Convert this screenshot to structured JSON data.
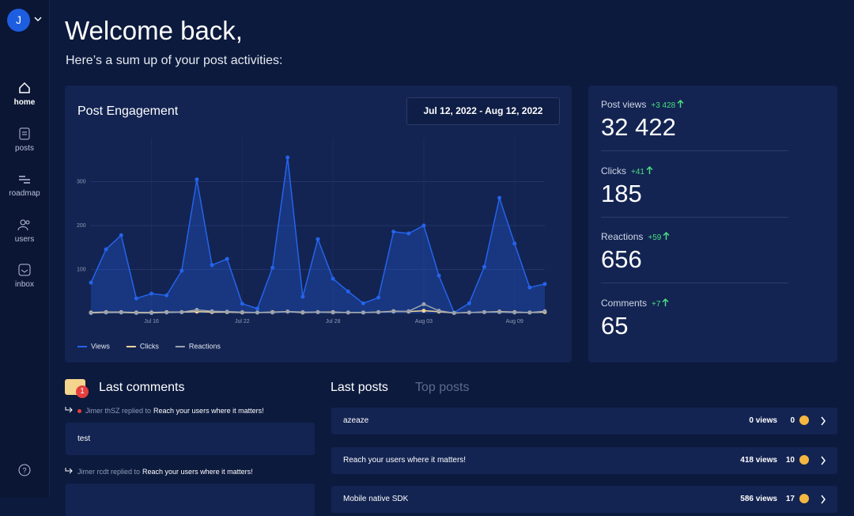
{
  "sidebar": {
    "avatar": "J",
    "nav": [
      "home",
      "posts",
      "roadmap",
      "users",
      "inbox"
    ]
  },
  "header": {
    "title": "Welcome back,",
    "subtitle": "Here’s a sum up of your post activities:"
  },
  "chart_data": {
    "type": "line",
    "title": "Post Engagement",
    "date_range": "Jul 12, 2022 - Aug 12, 2022",
    "categories": [
      null,
      null,
      null,
      null,
      "Jul 16",
      null,
      null,
      null,
      null,
      null,
      "Jul 22",
      null,
      null,
      null,
      null,
      null,
      "Jul 28",
      null,
      null,
      null,
      null,
      null,
      "Aug 03",
      null,
      null,
      null,
      null,
      null,
      "Aug 09",
      null,
      null
    ],
    "series": [
      {
        "name": "Views",
        "color": "#2563eb",
        "values": [
          70,
          146,
          178,
          34,
          45,
          41,
          97,
          305,
          110,
          124,
          22,
          11,
          104,
          355,
          38,
          169,
          79,
          50,
          23,
          36,
          186,
          182,
          200,
          86,
          2,
          23,
          106,
          263,
          159,
          59,
          67
        ]
      },
      {
        "name": "Clicks",
        "color": "#f2d49b",
        "values": [
          2,
          3,
          3,
          2,
          2,
          3,
          3,
          4,
          3,
          3,
          2,
          2,
          3,
          4,
          2,
          3,
          3,
          2,
          2,
          3,
          5,
          4,
          6,
          4,
          1,
          2,
          3,
          4,
          3,
          2,
          3
        ]
      },
      {
        "name": "Reactions",
        "color": "#9ca3af",
        "values": [
          1,
          2,
          2,
          1,
          1,
          2,
          3,
          8,
          5,
          4,
          3,
          2,
          2,
          4,
          3,
          3,
          2,
          2,
          2,
          3,
          4,
          5,
          21,
          6,
          1,
          2,
          3,
          3,
          2,
          2,
          5
        ]
      }
    ],
    "ylim": [
      0,
      400
    ],
    "yticks": [
      100,
      200,
      300
    ],
    "grid": true
  },
  "stats": [
    {
      "label": "Post views",
      "delta": "+3 428",
      "value": "32 422"
    },
    {
      "label": "Clicks",
      "delta": "+41",
      "value": "185"
    },
    {
      "label": "Reactions",
      "delta": "+59",
      "value": "656"
    },
    {
      "label": "Comments",
      "delta": "+7",
      "value": "65"
    }
  ],
  "comments": {
    "title": "Last comments",
    "badge": "1",
    "items": [
      {
        "author": "Jimer thSZ replied to",
        "post": "Reach your users where it matters!",
        "text": "test"
      },
      {
        "author": "Jimer rcdt replied to",
        "post": "Reach your users where it matters!",
        "text": ""
      }
    ]
  },
  "posts": {
    "tabs": [
      "Last posts",
      "Top posts"
    ],
    "items": [
      {
        "title": "azeaze",
        "views": "0 views",
        "reactions": "0"
      },
      {
        "title": "Reach your users where it matters!",
        "views": "418 views",
        "reactions": "10"
      },
      {
        "title": "Mobile native SDK",
        "views": "586 views",
        "reactions": "17"
      }
    ]
  }
}
